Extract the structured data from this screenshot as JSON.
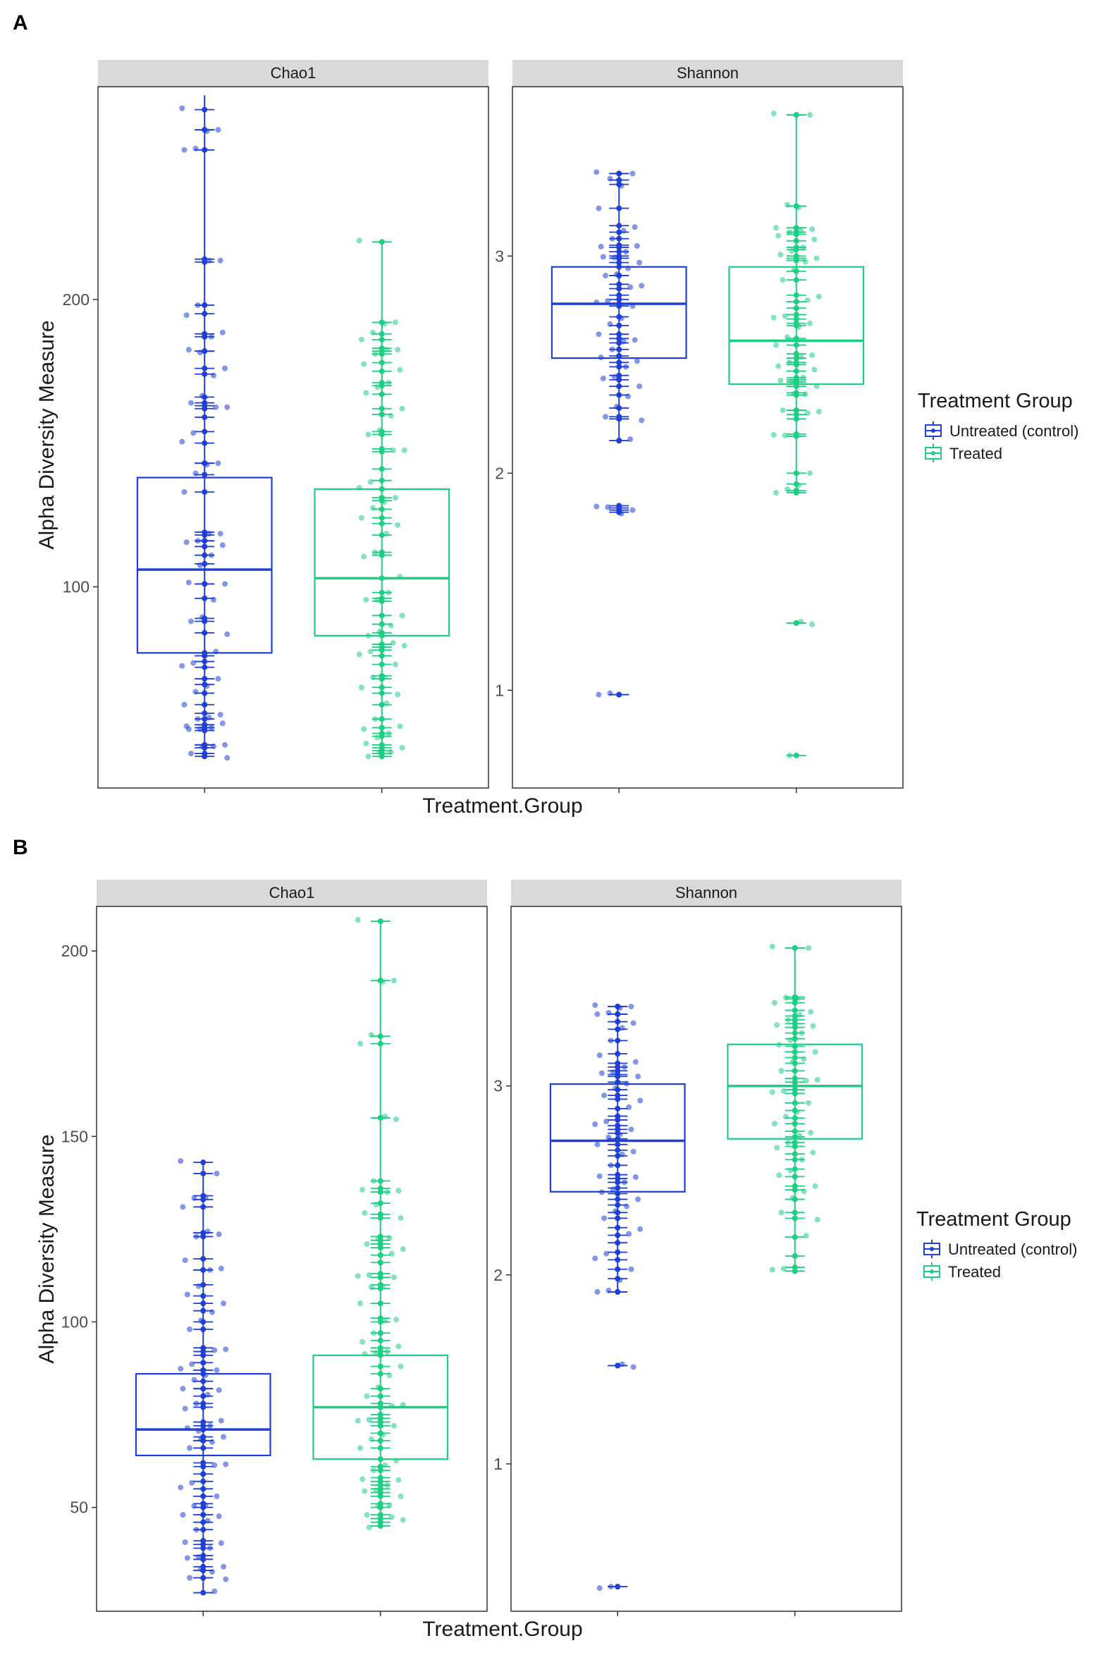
{
  "figure": {
    "panel_a_label": "A",
    "panel_b_label": "B",
    "legend_title": "Treatment Group",
    "x_axis_label": "Treatment.Group",
    "y_axis_label": "Alpha Diversity Measure"
  },
  "colors": {
    "control": "#1f3fd6",
    "treated": "#1dce84"
  },
  "groups": [
    "Untreated (control)",
    "Treated"
  ],
  "chart_data": [
    {
      "type": "box",
      "panel": "A",
      "facet": "Chao1",
      "categories": [
        "Untreated (control)",
        "Treated"
      ],
      "yticks": [
        100,
        200
      ],
      "ylim": [
        30,
        274
      ],
      "grid": false,
      "series": [
        {
          "name": "Untreated (control)",
          "box": {
            "q1": 77,
            "median": 106,
            "q3": 138,
            "whisker_low": 41,
            "whisker_high": 271
          },
          "points": [
            266,
            259,
            259,
            252,
            252,
            214,
            213,
            198,
            195,
            188,
            187,
            182,
            182,
            176,
            174,
            166,
            164,
            163,
            162,
            159,
            154,
            150,
            143,
            143,
            139,
            133,
            119,
            118,
            116,
            116,
            114,
            111,
            108,
            101,
            101,
            96,
            89,
            88,
            84,
            77,
            76,
            74,
            72,
            68,
            66,
            63,
            59,
            56,
            54,
            54,
            52,
            52,
            51,
            51,
            50,
            45,
            45,
            44,
            42,
            41
          ]
        },
        {
          "name": "Treated",
          "box": {
            "q1": 83,
            "median": 103,
            "q3": 134,
            "whisker_low": 41,
            "whisker_high": 220
          },
          "points": [
            220,
            192,
            192,
            188,
            186,
            183,
            182,
            181,
            178,
            175,
            171,
            170,
            167,
            162,
            160,
            154,
            153,
            148,
            147,
            141,
            137,
            134,
            131,
            130,
            127,
            124,
            122,
            118,
            112,
            111,
            103,
            98,
            96,
            95,
            90,
            87,
            84,
            83,
            80,
            80,
            79,
            78,
            76,
            73,
            69,
            68,
            65,
            63,
            59,
            54,
            51,
            51,
            49,
            48,
            45,
            44,
            43,
            42,
            41
          ]
        }
      ]
    },
    {
      "type": "box",
      "panel": "A",
      "facet": "Shannon",
      "categories": [
        "Untreated (control)",
        "Treated"
      ],
      "yticks": [
        1,
        2,
        3
      ],
      "ylim": [
        0.55,
        3.78
      ],
      "grid": false,
      "series": [
        {
          "name": "Untreated (control)",
          "box": {
            "q1": 2.53,
            "median": 2.78,
            "q3": 2.95,
            "whisker_low": 2.15,
            "whisker_high": 3.38
          },
          "points": [
            3.38,
            3.38,
            3.33,
            3.35,
            3.22,
            3.14,
            3.11,
            3.08,
            3.05,
            3.04,
            3.02,
            3.0,
            2.99,
            2.97,
            2.95,
            2.91,
            2.91,
            2.87,
            2.85,
            2.82,
            2.8,
            2.78,
            2.77,
            2.72,
            2.68,
            2.64,
            2.62,
            2.6,
            2.57,
            2.54,
            2.51,
            2.49,
            2.45,
            2.43,
            2.4,
            2.36,
            2.3,
            2.26,
            2.25,
            2.15,
            2.15,
            1.85,
            1.84,
            1.83,
            1.82,
            0.98,
            0.98
          ]
        },
        {
          "name": "Treated",
          "box": {
            "q1": 2.41,
            "median": 2.61,
            "q3": 2.95,
            "whisker_low": 1.91,
            "whisker_high": 3.65
          },
          "points": [
            3.65,
            3.65,
            3.23,
            3.23,
            3.13,
            3.13,
            3.11,
            3.11,
            3.1,
            3.07,
            3.04,
            3.03,
            3.0,
            2.99,
            2.98,
            2.93,
            2.89,
            2.82,
            2.79,
            2.76,
            2.73,
            2.71,
            2.69,
            2.68,
            2.62,
            2.59,
            2.55,
            2.53,
            2.51,
            2.5,
            2.47,
            2.44,
            2.43,
            2.42,
            2.4,
            2.37,
            2.36,
            2.29,
            2.29,
            2.27,
            2.25,
            2.18,
            2.17,
            2.0,
            1.95,
            1.92,
            1.91,
            1.31,
            1.31,
            0.7
          ]
        }
      ]
    },
    {
      "type": "box",
      "panel": "B",
      "facet": "Chao1",
      "categories": [
        "Untreated (control)",
        "Treated"
      ],
      "yticks": [
        50,
        100,
        150,
        200
      ],
      "ylim": [
        22,
        212
      ],
      "grid": false,
      "series": [
        {
          "name": "Untreated (control)",
          "box": {
            "q1": 64,
            "median": 71,
            "q3": 86,
            "whisker_low": 27,
            "whisker_high": 143
          },
          "points": [
            143,
            140,
            134,
            133,
            131,
            124,
            124,
            123,
            117,
            114,
            114,
            110,
            107,
            105,
            103,
            100,
            98,
            93,
            92,
            91,
            89,
            87,
            87,
            86,
            84,
            82,
            82,
            80,
            78,
            77,
            73,
            72,
            71,
            71,
            69,
            68,
            68,
            66,
            62,
            61,
            59,
            57,
            55,
            53,
            51,
            50,
            48,
            48,
            46,
            44,
            41,
            40,
            39,
            37,
            36,
            34,
            33,
            33,
            31,
            31,
            27
          ]
        },
        {
          "name": "Treated",
          "box": {
            "q1": 63,
            "median": 77,
            "q3": 91,
            "whisker_low": 45,
            "whisker_high": 208
          },
          "points": [
            208,
            192,
            192,
            177,
            175,
            155,
            155,
            138,
            136,
            135,
            135,
            132,
            129,
            128,
            123,
            122,
            121,
            120,
            118,
            116,
            113,
            112,
            112,
            110,
            109,
            105,
            101,
            100,
            97,
            95,
            93,
            92,
            92,
            91,
            88,
            86,
            82,
            80,
            78,
            77,
            75,
            74,
            73,
            72,
            70,
            68,
            66,
            63,
            61,
            60,
            58,
            57,
            56,
            55,
            54,
            53,
            51,
            50,
            48,
            47,
            47,
            46,
            45
          ]
        }
      ]
    },
    {
      "type": "box",
      "panel": "B",
      "facet": "Shannon",
      "categories": [
        "Untreated (control)",
        "Treated"
      ],
      "yticks": [
        1,
        2,
        3
      ],
      "ylim": [
        0.22,
        3.95
      ],
      "grid": false,
      "series": [
        {
          "name": "Untreated (control)",
          "box": {
            "q1": 2.44,
            "median": 2.71,
            "q3": 3.01,
            "whisker_low": 1.91,
            "whisker_high": 3.42
          },
          "points": [
            3.42,
            3.42,
            3.42,
            3.38,
            3.38,
            3.34,
            3.3,
            3.24,
            3.17,
            3.12,
            3.1,
            3.08,
            3.06,
            3.05,
            3.02,
            2.98,
            2.95,
            2.93,
            2.88,
            2.84,
            2.82,
            2.79,
            2.77,
            2.75,
            2.72,
            2.69,
            2.66,
            2.63,
            2.58,
            2.53,
            2.51,
            2.49,
            2.46,
            2.43,
            2.4,
            2.37,
            2.33,
            2.3,
            2.25,
            2.21,
            2.17,
            2.12,
            2.08,
            2.03,
            1.98,
            1.91,
            1.91,
            1.52,
            1.52,
            0.35,
            0.35
          ]
        },
        {
          "name": "Treated",
          "box": {
            "q1": 2.72,
            "median": 3.0,
            "q3": 3.22,
            "whisker_low": 2.02,
            "whisker_high": 3.73
          },
          "points": [
            3.73,
            3.73,
            3.47,
            3.46,
            3.44,
            3.4,
            3.37,
            3.35,
            3.33,
            3.31,
            3.28,
            3.25,
            3.21,
            3.18,
            3.15,
            3.12,
            3.08,
            3.04,
            3.02,
            3.0,
            2.98,
            2.96,
            2.91,
            2.87,
            2.83,
            2.8,
            2.76,
            2.73,
            2.7,
            2.68,
            2.64,
            2.61,
            2.56,
            2.52,
            2.47,
            2.45,
            2.4,
            2.33,
            2.3,
            2.2,
            2.1,
            2.04,
            2.02
          ]
        }
      ]
    }
  ]
}
